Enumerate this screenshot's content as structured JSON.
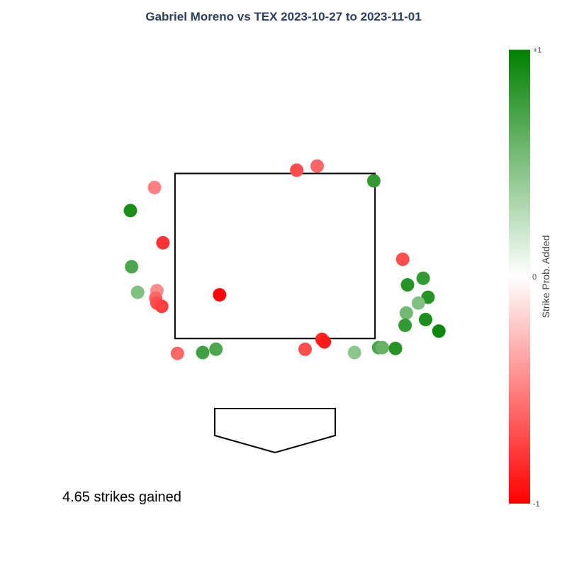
{
  "chart_data": {
    "type": "scatter",
    "title": "Gabriel Moreno vs TEX 2023-10-27 to 2023-11-01",
    "annotation": "4.65 strikes gained",
    "xlim": [
      -1.5,
      1.5
    ],
    "ylim": [
      -0.5,
      5.0
    ],
    "zone": {
      "x0": -0.83,
      "x1": 0.83,
      "y0": 1.5,
      "y1": 3.5
    },
    "colorbar": {
      "title": "Strike Prob. Added",
      "range": [
        -1,
        1
      ],
      "tick_labels": [
        "+1",
        "0",
        "-1"
      ],
      "colors": {
        "low": "#ff0000",
        "mid": "#ffffff",
        "high": "#008000"
      }
    },
    "points": [
      {
        "x": 0.18,
        "y": 3.54,
        "v": -0.7
      },
      {
        "x": 0.35,
        "y": 3.59,
        "v": -0.6
      },
      {
        "x": 0.82,
        "y": 3.41,
        "v": 0.8
      },
      {
        "x": -1.0,
        "y": 3.33,
        "v": -0.5
      },
      {
        "x": -1.2,
        "y": 3.05,
        "v": 0.9
      },
      {
        "x": -0.93,
        "y": 2.66,
        "v": -0.8
      },
      {
        "x": -1.19,
        "y": 2.37,
        "v": 0.7
      },
      {
        "x": -0.98,
        "y": 2.08,
        "v": -0.45
      },
      {
        "x": -1.14,
        "y": 2.06,
        "v": 0.5
      },
      {
        "x": -0.99,
        "y": 1.99,
        "v": -0.6
      },
      {
        "x": -0.98,
        "y": 1.93,
        "v": -0.7
      },
      {
        "x": -0.94,
        "y": 1.89,
        "v": -0.75
      },
      {
        "x": -0.46,
        "y": 2.03,
        "v": -0.98
      },
      {
        "x": 1.06,
        "y": 2.46,
        "v": -0.7
      },
      {
        "x": 1.23,
        "y": 2.23,
        "v": 0.8
      },
      {
        "x": 1.1,
        "y": 2.15,
        "v": 0.85
      },
      {
        "x": 1.27,
        "y": 2.0,
        "v": 0.85
      },
      {
        "x": 1.19,
        "y": 1.93,
        "v": 0.5
      },
      {
        "x": 1.09,
        "y": 1.81,
        "v": 0.55
      },
      {
        "x": 1.25,
        "y": 1.73,
        "v": 0.9
      },
      {
        "x": 1.08,
        "y": 1.66,
        "v": 0.8
      },
      {
        "x": 1.36,
        "y": 1.59,
        "v": 0.95
      },
      {
        "x": 0.39,
        "y": 1.49,
        "v": -0.85
      },
      {
        "x": 0.41,
        "y": 1.46,
        "v": -0.9
      },
      {
        "x": 0.25,
        "y": 1.37,
        "v": -0.7
      },
      {
        "x": 0.86,
        "y": 1.39,
        "v": 0.7
      },
      {
        "x": 0.89,
        "y": 1.39,
        "v": 0.6
      },
      {
        "x": 1.0,
        "y": 1.38,
        "v": 0.85
      },
      {
        "x": 0.66,
        "y": 1.33,
        "v": 0.45
      },
      {
        "x": -0.81,
        "y": 1.32,
        "v": -0.6
      },
      {
        "x": -0.6,
        "y": 1.33,
        "v": 0.75
      },
      {
        "x": -0.49,
        "y": 1.37,
        "v": 0.7
      }
    ]
  }
}
